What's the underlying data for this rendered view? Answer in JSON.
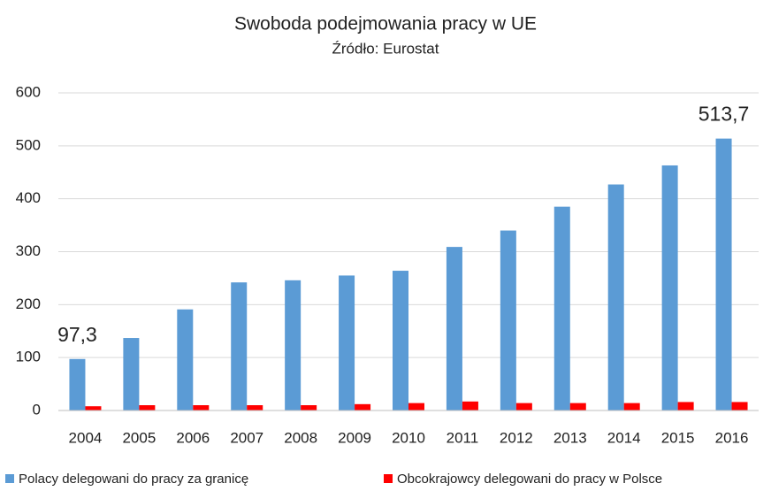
{
  "chart_data": {
    "type": "bar",
    "title": "Swoboda podejmowania pracy w UE",
    "subtitle": "Źródło: Eurostat",
    "categories": [
      "2004",
      "2005",
      "2006",
      "2007",
      "2008",
      "2009",
      "2010",
      "2011",
      "2012",
      "2013",
      "2014",
      "2015",
      "2016"
    ],
    "series": [
      {
        "name": "Polacy delegowani do pracy za granicę",
        "color": "#5b9bd5",
        "values": [
          97.3,
          137,
          191,
          242,
          246,
          255,
          264,
          309,
          340,
          385,
          427,
          463,
          513.7
        ],
        "value_labels": [
          "97,3",
          null,
          null,
          null,
          null,
          null,
          null,
          null,
          null,
          null,
          null,
          null,
          "513,7"
        ]
      },
      {
        "name": "Obcokrajowcy delegowani do pracy w Polsce",
        "color": "#ff0000",
        "values": [
          8,
          10,
          10,
          10,
          10,
          12,
          14,
          17,
          14,
          14,
          14,
          16,
          16
        ]
      }
    ],
    "ylim": [
      0,
      600
    ],
    "yticks": [
      0,
      100,
      200,
      300,
      400,
      500,
      600
    ],
    "grid": true,
    "legend": "bottom"
  }
}
